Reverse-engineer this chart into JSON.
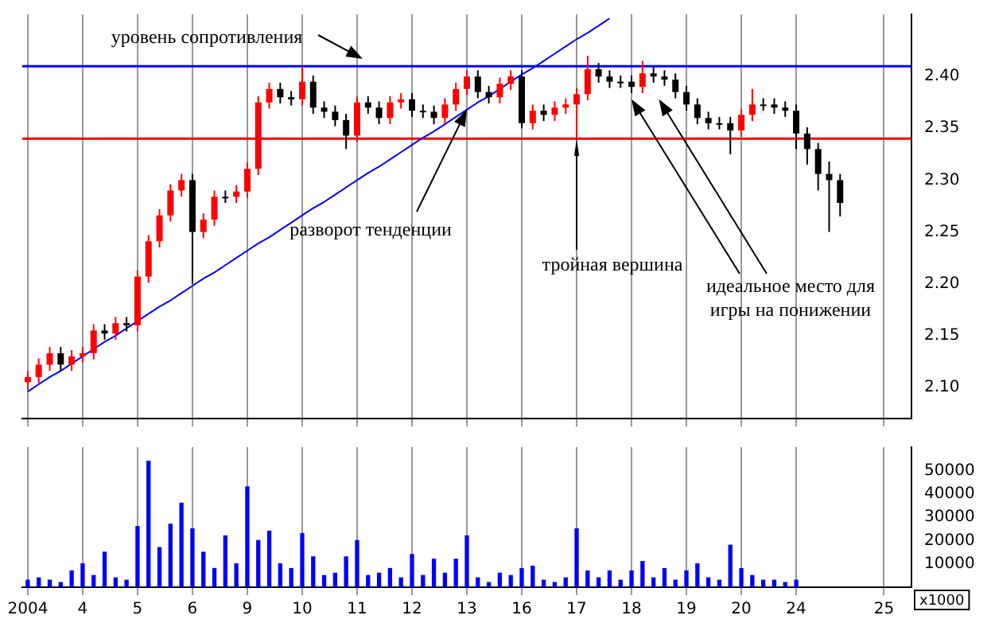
{
  "chart_data": [
    {
      "type": "candlestick",
      "categories": [
        "2004",
        null,
        null,
        null,
        null,
        "4",
        null,
        null,
        null,
        null,
        "5",
        null,
        null,
        null,
        null,
        "6",
        null,
        null,
        null,
        null,
        "9",
        null,
        null,
        null,
        null,
        "10",
        null,
        null,
        null,
        null,
        "11",
        null,
        null,
        null,
        null,
        "12",
        null,
        null,
        null,
        null,
        "13",
        null,
        null,
        null,
        null,
        "16",
        null,
        null,
        null,
        null,
        "17",
        null,
        null,
        null,
        null,
        "18",
        null,
        null,
        null,
        null,
        "19",
        null,
        null,
        null,
        null,
        "20",
        null,
        null,
        null,
        null,
        "24",
        null,
        null,
        null,
        null,
        null,
        null,
        null,
        "25",
        null,
        null
      ],
      "ohlc": [
        [
          2.105,
          2.116,
          2.098,
          2.11
        ],
        [
          2.11,
          2.128,
          2.104,
          2.122
        ],
        [
          2.122,
          2.139,
          2.116,
          2.133
        ],
        [
          2.133,
          2.139,
          2.116,
          2.122
        ],
        [
          2.122,
          2.136,
          2.116,
          2.13
        ],
        [
          2.13,
          2.139,
          2.124,
          2.133
        ],
        [
          2.133,
          2.161,
          2.127,
          2.155
        ],
        [
          2.155,
          2.161,
          2.146,
          2.152
        ],
        [
          2.152,
          2.168,
          2.146,
          2.162
        ],
        [
          2.162,
          2.168,
          2.154,
          2.16
        ],
        [
          2.16,
          2.213,
          2.154,
          2.207
        ],
        [
          2.207,
          2.247,
          2.201,
          2.241
        ],
        [
          2.241,
          2.272,
          2.235,
          2.266
        ],
        [
          2.266,
          2.296,
          2.26,
          2.29
        ],
        [
          2.29,
          2.306,
          2.284,
          2.3
        ],
        [
          2.3,
          2.306,
          2.2,
          2.25
        ],
        [
          2.25,
          2.268,
          2.244,
          2.262
        ],
        [
          2.262,
          2.29,
          2.256,
          2.284
        ],
        [
          2.284,
          2.29,
          2.278,
          2.284
        ],
        [
          2.284,
          2.295,
          2.278,
          2.289
        ],
        [
          2.289,
          2.317,
          2.283,
          2.311
        ],
        [
          2.311,
          2.381,
          2.305,
          2.375
        ],
        [
          2.375,
          2.394,
          2.369,
          2.388
        ],
        [
          2.388,
          2.394,
          2.374,
          2.38
        ],
        [
          2.38,
          2.386,
          2.372,
          2.378
        ],
        [
          2.378,
          2.41,
          2.372,
          2.395
        ],
        [
          2.395,
          2.401,
          2.364,
          2.37
        ],
        [
          2.37,
          2.376,
          2.36,
          2.366
        ],
        [
          2.366,
          2.372,
          2.352,
          2.358
        ],
        [
          2.358,
          2.364,
          2.33,
          2.343
        ],
        [
          2.343,
          2.381,
          2.337,
          2.375
        ],
        [
          2.375,
          2.381,
          2.364,
          2.37
        ],
        [
          2.37,
          2.376,
          2.354,
          2.36
        ],
        [
          2.36,
          2.381,
          2.354,
          2.375
        ],
        [
          2.375,
          2.384,
          2.369,
          2.378
        ],
        [
          2.378,
          2.384,
          2.361,
          2.367
        ],
        [
          2.367,
          2.373,
          2.36,
          2.366
        ],
        [
          2.366,
          2.372,
          2.354,
          2.36
        ],
        [
          2.36,
          2.379,
          2.354,
          2.373
        ],
        [
          2.373,
          2.394,
          2.367,
          2.388
        ],
        [
          2.388,
          2.406,
          2.382,
          2.4
        ],
        [
          2.4,
          2.406,
          2.379,
          2.385
        ],
        [
          2.385,
          2.391,
          2.374,
          2.38
        ],
        [
          2.38,
          2.399,
          2.374,
          2.393
        ],
        [
          2.393,
          2.406,
          2.387,
          2.4
        ],
        [
          2.4,
          2.406,
          2.35,
          2.355
        ],
        [
          2.355,
          2.373,
          2.349,
          2.367
        ],
        [
          2.367,
          2.373,
          2.357,
          2.363
        ],
        [
          2.363,
          2.376,
          2.357,
          2.37
        ],
        [
          2.37,
          2.379,
          2.364,
          2.373
        ],
        [
          2.373,
          2.389,
          2.34,
          2.383
        ],
        [
          2.383,
          2.42,
          2.377,
          2.407
        ],
        [
          2.407,
          2.413,
          2.394,
          2.4
        ],
        [
          2.4,
          2.406,
          2.389,
          2.395
        ],
        [
          2.395,
          2.401,
          2.389,
          2.395
        ],
        [
          2.395,
          2.401,
          2.384,
          2.39
        ],
        [
          2.39,
          2.415,
          2.384,
          2.403
        ],
        [
          2.403,
          2.409,
          2.394,
          2.4
        ],
        [
          2.4,
          2.406,
          2.391,
          2.397
        ],
        [
          2.397,
          2.403,
          2.379,
          2.385
        ],
        [
          2.385,
          2.391,
          2.367,
          2.373
        ],
        [
          2.373,
          2.379,
          2.354,
          2.36
        ],
        [
          2.36,
          2.366,
          2.349,
          2.355
        ],
        [
          2.355,
          2.361,
          2.349,
          2.355
        ],
        [
          2.355,
          2.361,
          2.325,
          2.348
        ],
        [
          2.348,
          2.369,
          2.342,
          2.363
        ],
        [
          2.363,
          2.388,
          2.357,
          2.373
        ],
        [
          2.373,
          2.379,
          2.367,
          2.373
        ],
        [
          2.373,
          2.379,
          2.364,
          2.37
        ],
        [
          2.37,
          2.376,
          2.361,
          2.367
        ],
        [
          2.367,
          2.373,
          2.33,
          2.345
        ],
        [
          2.345,
          2.351,
          2.315,
          2.33
        ],
        [
          2.33,
          2.336,
          2.29,
          2.306
        ],
        [
          2.306,
          2.318,
          2.25,
          2.3
        ],
        [
          2.3,
          2.306,
          2.265,
          2.278
        ],
        null,
        null,
        null,
        null,
        null,
        null
      ],
      "colors": [
        "#ff0000",
        "#ff0000",
        "#ff0000",
        "#000000",
        "#ff0000",
        "#ff0000",
        "#ff0000",
        "#000000",
        "#ff0000",
        "#000000",
        "#ff0000",
        "#ff0000",
        "#ff0000",
        "#ff0000",
        "#ff0000",
        "#000000",
        "#ff0000",
        "#ff0000",
        "#000000",
        "#ff0000",
        "#ff0000",
        "#ff0000",
        "#ff0000",
        "#000000",
        "#000000",
        "#ff0000",
        "#000000",
        "#000000",
        "#000000",
        "#000000",
        "#ff0000",
        "#000000",
        "#000000",
        "#ff0000",
        "#ff0000",
        "#000000",
        "#000000",
        "#000000",
        "#ff0000",
        "#ff0000",
        "#ff0000",
        "#000000",
        "#000000",
        "#ff0000",
        "#ff0000",
        "#000000",
        "#ff0000",
        "#000000",
        "#ff0000",
        "#ff0000",
        "#ff0000",
        "#ff0000",
        "#000000",
        "#000000",
        "#000000",
        "#000000",
        "#ff0000",
        "#000000",
        "#000000",
        "#000000",
        "#000000",
        "#000000",
        "#000000",
        "#000000",
        "#000000",
        "#ff0000",
        "#ff0000",
        "#000000",
        "#000000",
        "#000000",
        "#000000",
        "#000000",
        "#000000",
        "#000000",
        "#000000",
        null,
        null,
        null,
        null,
        null,
        null
      ],
      "series": [
        {
          "type": "line",
          "values": [
            2.096,
            2.103,
            2.11,
            2.116,
            2.123,
            2.13,
            2.137,
            2.144,
            2.15,
            2.157,
            2.164,
            2.171,
            2.178,
            2.184,
            2.191,
            2.198,
            2.205,
            2.211,
            2.218,
            2.225,
            2.232,
            2.239,
            2.245,
            2.252,
            2.259,
            2.266,
            2.273,
            2.279,
            2.286,
            2.293,
            2.3,
            2.307,
            2.313,
            2.32,
            2.327,
            2.334,
            2.341,
            2.347,
            2.354,
            2.361,
            2.368,
            2.375,
            2.381,
            2.388,
            2.395,
            2.402,
            2.408,
            2.415,
            2.422,
            2.429,
            2.436,
            2.442,
            2.449,
            2.456,
            null,
            null,
            null,
            null,
            null,
            null,
            null,
            null,
            null,
            null,
            null,
            null,
            null,
            null,
            null,
            null,
            null,
            null,
            null,
            null,
            null,
            null,
            null,
            null,
            null,
            null,
            null
          ],
          "color": "#0000ff"
        }
      ],
      "ylim": [
        2.07,
        2.46
      ],
      "yticks": [
        {
          "value": 2.1,
          "label": "2.10"
        },
        {
          "value": 2.15,
          "label": "2.15"
        },
        {
          "value": 2.2,
          "label": "2.20"
        },
        {
          "value": 2.25,
          "label": "2.25"
        },
        {
          "value": 2.3,
          "label": "2.30"
        },
        {
          "value": 2.35,
          "label": "2.35"
        },
        {
          "value": 2.4,
          "label": "2.40"
        }
      ],
      "tick_labels": "y",
      "grid": "x",
      "ref_lines": [
        {
          "axis": "y",
          "value": 2.41,
          "color": "#0000ff"
        },
        {
          "axis": "y",
          "value": 2.34,
          "color": "#ff0000"
        }
      ],
      "annotations": [
        "уровень сопротивления",
        {
          "text": "разворот тенденции",
          "x": "13",
          "y": 2.368
        },
        {
          "text": "тройная вершина",
          "x": "17",
          "y": 2.34
        },
        {
          "text": "идеальное место для игры на понижении",
          "x": "18",
          "y": 2.378
        }
      ]
    },
    {
      "type": "bar",
      "categories": [
        "2004",
        null,
        null,
        null,
        null,
        "4",
        null,
        null,
        null,
        null,
        "5",
        null,
        null,
        null,
        null,
        "6",
        null,
        null,
        null,
        null,
        "9",
        null,
        null,
        null,
        null,
        "10",
        null,
        null,
        null,
        null,
        "11",
        null,
        null,
        null,
        null,
        "12",
        null,
        null,
        null,
        null,
        "13",
        null,
        null,
        null,
        null,
        "16",
        null,
        null,
        null,
        null,
        "17",
        null,
        null,
        null,
        null,
        "18",
        null,
        null,
        null,
        null,
        "19",
        null,
        null,
        null,
        null,
        "20",
        null,
        null,
        null,
        null,
        "24",
        null,
        null,
        null,
        null,
        null,
        null,
        null,
        "25",
        null,
        null
      ],
      "values": [
        3000,
        4000,
        3000,
        2000,
        7000,
        10000,
        5000,
        15000,
        4000,
        3000,
        26000,
        54000,
        17000,
        27000,
        36000,
        25000,
        15000,
        8000,
        22000,
        10000,
        43000,
        20000,
        24000,
        10000,
        8000,
        23000,
        13000,
        5000,
        6000,
        13000,
        20000,
        5000,
        6000,
        8000,
        4000,
        14000,
        5000,
        12000,
        6000,
        12000,
        22000,
        4000,
        2000,
        6000,
        5000,
        8000,
        9000,
        3000,
        2000,
        4000,
        25000,
        7000,
        4000,
        7000,
        3000,
        7000,
        11000,
        4000,
        8000,
        3000,
        7000,
        10000,
        4000,
        3000,
        18000,
        8000,
        5000,
        3000,
        3000,
        2000,
        3000,
        null,
        null,
        null,
        null,
        null,
        null,
        null,
        null,
        null,
        null
      ],
      "color": "#0000ff",
      "ylabel": "x1000",
      "ylim": [
        0,
        60000
      ],
      "yticks": [
        10000,
        20000,
        30000,
        40000,
        50000
      ],
      "grid": "x"
    }
  ]
}
